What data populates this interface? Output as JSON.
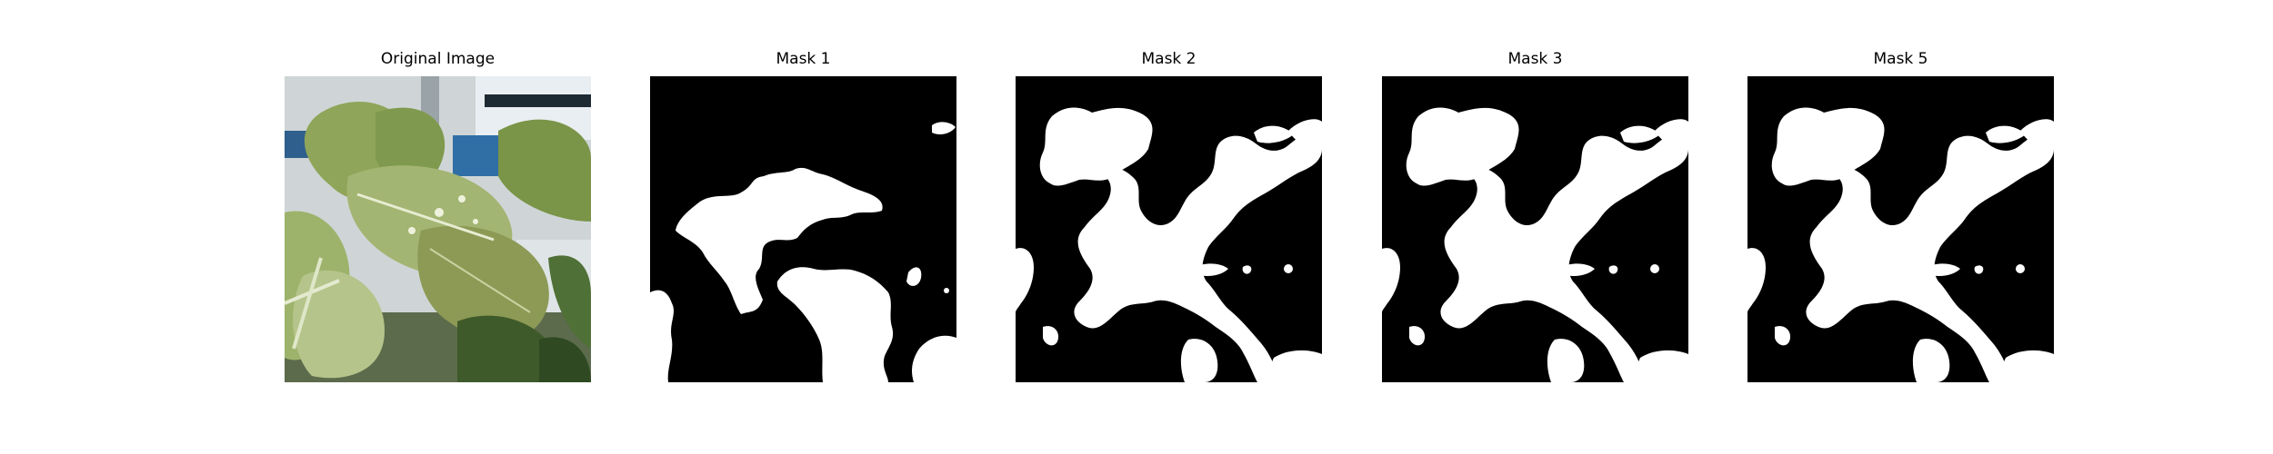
{
  "panels": [
    {
      "title": "Original Image",
      "kind": "photo",
      "subject": "plant-leaves"
    },
    {
      "title": "Mask 1",
      "kind": "mask"
    },
    {
      "title": "Mask 2",
      "kind": "mask"
    },
    {
      "title": "Mask 3",
      "kind": "mask"
    },
    {
      "title": "Mask 5",
      "kind": "mask"
    }
  ],
  "colors": {
    "mask_foreground": "#ffffff",
    "mask_background": "#000000",
    "leaf_light": "#b5c48a",
    "leaf_mid": "#7f9a4e",
    "leaf_dark": "#3f5a2a",
    "sky_blue": "#2f6fa5",
    "wall": "#d9dde0"
  }
}
